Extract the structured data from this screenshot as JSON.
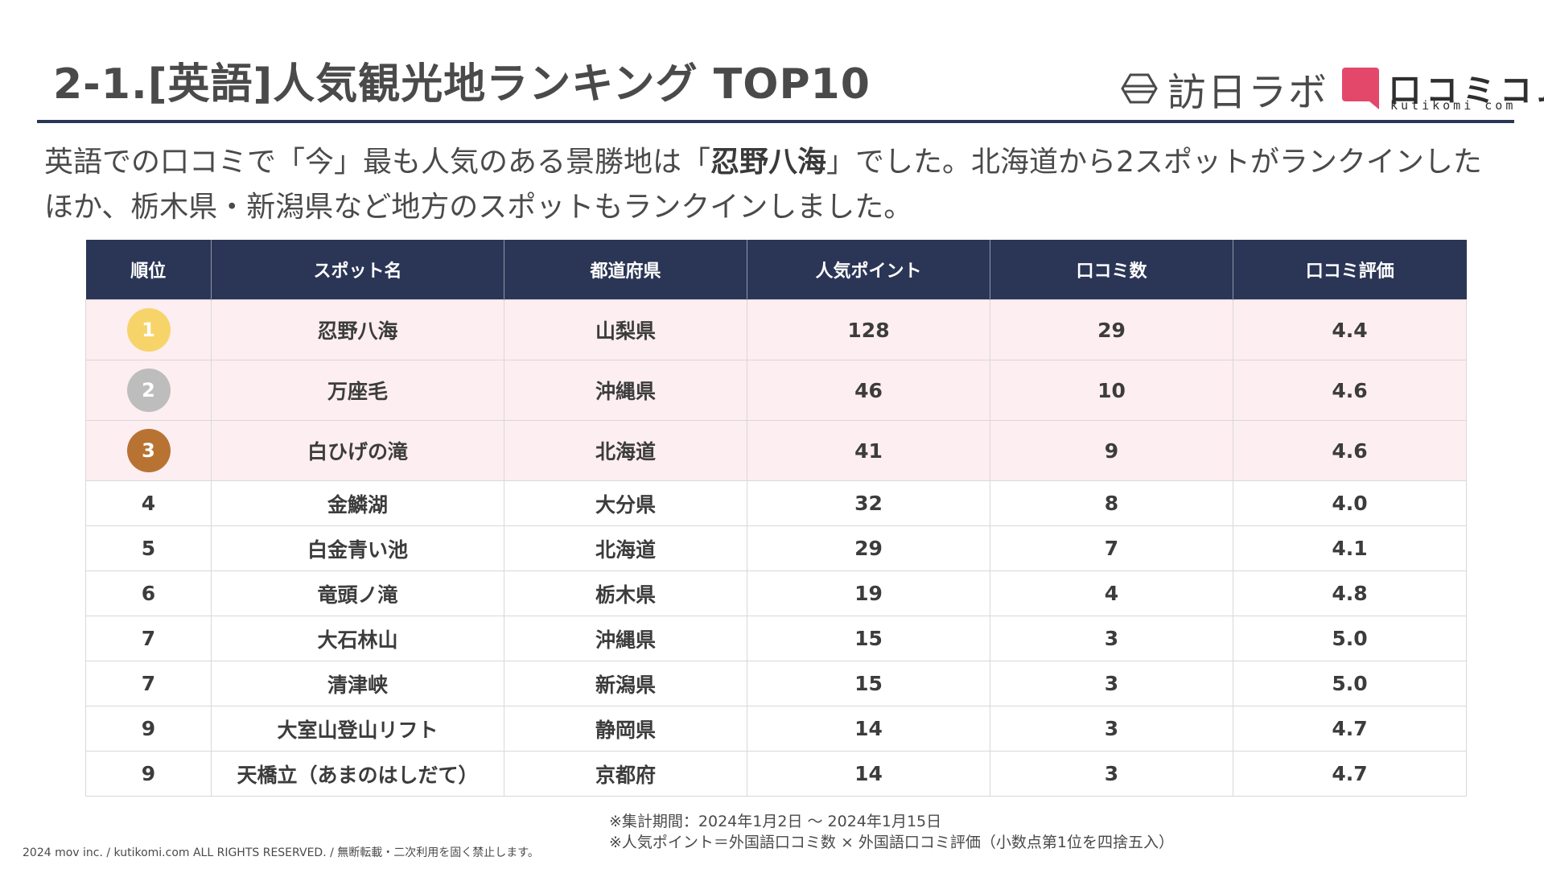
{
  "header": {
    "title": "2-1.[英語]人気観光地ランキング TOP10",
    "logo_lab": "訪日ラボ",
    "logo_kuchikomi": "口コミコム",
    "logo_kuchikomi_sub": "kutikomi com"
  },
  "lead": {
    "part1": "英語での口コミで「今」最も人気のある景勝地は「",
    "highlight": "忍野八海",
    "part2": "」でした。北海道から2スポットがランクインしたほか、栃木県・新潟県など地方のスポットもランクインしました。"
  },
  "table": {
    "headers": [
      "順位",
      "スポット名",
      "都道府県",
      "人気ポイント",
      "口コミ数",
      "口コミ評価"
    ],
    "medal_colors": [
      "#f7d469",
      "#bdbdbd",
      "#b87333"
    ],
    "rows": [
      [
        "1",
        "忍野八海",
        "山梨県",
        "128",
        "29",
        "4.4"
      ],
      [
        "2",
        "万座毛",
        "沖縄県",
        "46",
        "10",
        "4.6"
      ],
      [
        "3",
        "白ひげの滝",
        "北海道",
        "41",
        "9",
        "4.6"
      ],
      [
        "4",
        "金鱗湖",
        "大分県",
        "32",
        "8",
        "4.0"
      ],
      [
        "5",
        "白金青い池",
        "北海道",
        "29",
        "7",
        "4.1"
      ],
      [
        "6",
        "竜頭ノ滝",
        "栃木県",
        "19",
        "4",
        "4.8"
      ],
      [
        "7",
        "大石林山",
        "沖縄県",
        "15",
        "3",
        "5.0"
      ],
      [
        "7",
        "清津峡",
        "新潟県",
        "15",
        "3",
        "5.0"
      ],
      [
        "9",
        "大室山登山リフト",
        "静岡県",
        "14",
        "3",
        "4.7"
      ],
      [
        "9",
        "天橋立（あまのはしだて）",
        "京都府",
        "14",
        "3",
        "4.7"
      ]
    ]
  },
  "footnotes": [
    "※集計期間：2024年1月2日 ～ 2024年1月15日",
    "※人気ポイント＝外国語口コミ数 × 外国語口コミ評価（小数点第1位を四捨五入）"
  ],
  "copyright": "2024 mov inc. / kutikomi.com ALL RIGHTS RESERVED. / 無断転載・二次利用を固く禁止します。"
}
